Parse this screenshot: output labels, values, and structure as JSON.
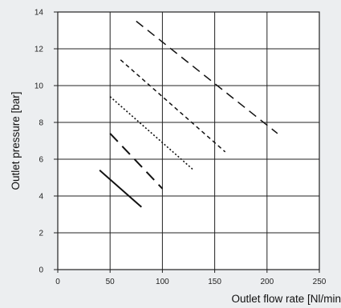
{
  "chart_data": {
    "type": "line",
    "title": "",
    "xlabel": "Outlet flow rate [Nl/min",
    "ylabel": "Outlet pressure [bar]",
    "xlim": [
      0,
      250
    ],
    "ylim": [
      0,
      14
    ],
    "xticks": [
      0,
      50,
      100,
      150,
      200,
      250
    ],
    "yticks": [
      0,
      2,
      4,
      6,
      8,
      10,
      12,
      14
    ],
    "grid": true,
    "legend": "none",
    "series": [
      {
        "style": "solid",
        "x": [
          40,
          80
        ],
        "y": [
          5.4,
          3.4
        ]
      },
      {
        "style": "long-dash",
        "x": [
          50,
          100
        ],
        "y": [
          7.4,
          4.4
        ]
      },
      {
        "style": "dotted",
        "x": [
          50,
          130
        ],
        "y": [
          9.4,
          5.4
        ]
      },
      {
        "style": "short-dash",
        "x": [
          60,
          160
        ],
        "y": [
          11.4,
          6.4
        ]
      },
      {
        "style": "dash",
        "x": [
          75,
          210
        ],
        "y": [
          13.5,
          7.4
        ]
      }
    ]
  }
}
